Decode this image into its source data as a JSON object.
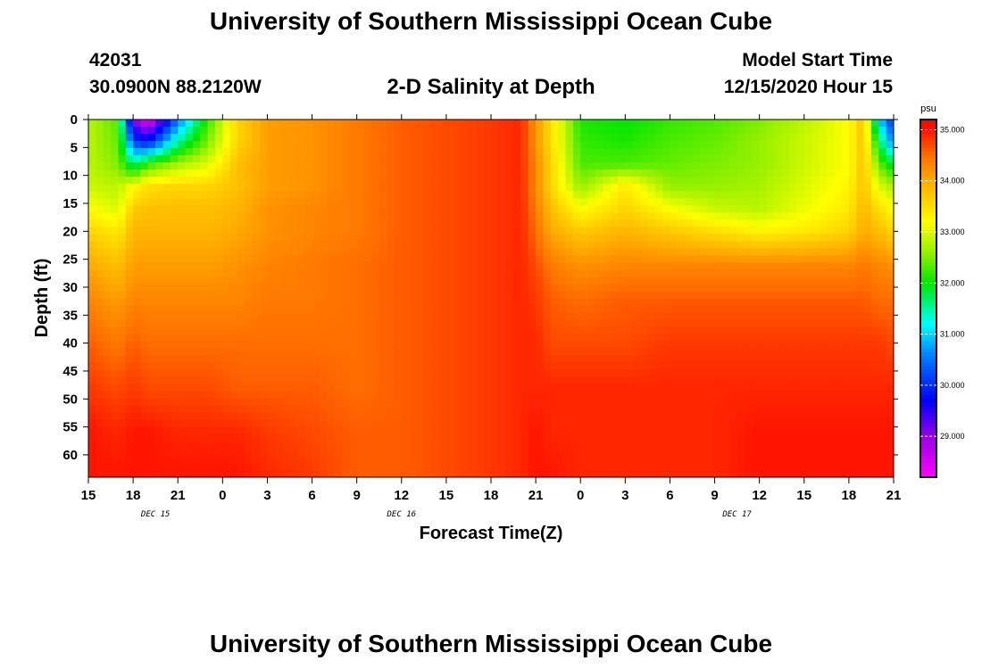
{
  "page": {
    "title": "University of Southern Mississippi Ocean Cube",
    "footer_title": "University of Southern Mississippi Ocean Cube",
    "station_id": "42031",
    "station_coords": "30.0900N 88.2120W",
    "model_start_label": "Model Start Time",
    "model_start_value": "12/15/2020 Hour 15"
  },
  "chart_data": {
    "type": "heatmap",
    "title": "2-D Salinity at Depth",
    "xlabel": "Forecast Time(Z)",
    "ylabel": "Depth (ft)",
    "x_ticks": [
      "15",
      "18",
      "21",
      "0",
      "3",
      "6",
      "9",
      "12",
      "15",
      "18",
      "21",
      "0",
      "3",
      "6",
      "9",
      "12",
      "15",
      "18",
      "21"
    ],
    "x_range_hours": [
      0,
      54
    ],
    "date_labels": [
      {
        "label": "DEC 15",
        "hour": 4.5
      },
      {
        "label": "DEC 16",
        "hour": 21
      },
      {
        "label": "DEC 17",
        "hour": 43.5
      }
    ],
    "y_ticks": [
      0,
      5,
      10,
      15,
      20,
      25,
      30,
      35,
      40,
      45,
      50,
      55,
      60
    ],
    "y_range": [
      0,
      64
    ],
    "colorbar": {
      "unit": "psu",
      "range": [
        28.2,
        35.2
      ],
      "ticks": [
        "35.000",
        "34.000",
        "33.000",
        "32.000",
        "31.000",
        "30.000",
        "29.000"
      ]
    },
    "grid_depths": [
      0,
      4,
      8,
      12,
      16,
      20,
      26,
      32,
      40,
      48,
      56,
      64
    ],
    "grid_hours": [
      0,
      2,
      3,
      4,
      6,
      8,
      10,
      12,
      15,
      18,
      21,
      24,
      27,
      29,
      30,
      31,
      33,
      36,
      39,
      42,
      45,
      48,
      51,
      52,
      53,
      54
    ],
    "salinity": [
      [
        32.8,
        32.3,
        29.0,
        28.3,
        30.5,
        32.2,
        33.6,
        34.1,
        34.2,
        34.4,
        34.6,
        34.7,
        34.8,
        34.9,
        34.2,
        33.5,
        32.1,
        32.0,
        32.2,
        32.3,
        32.5,
        32.8,
        33.2,
        33.8,
        31.0,
        30.0
      ],
      [
        32.8,
        32.4,
        30.2,
        29.8,
        31.5,
        32.5,
        33.6,
        34.1,
        34.2,
        34.4,
        34.6,
        34.7,
        34.8,
        34.9,
        34.2,
        33.5,
        32.2,
        32.1,
        32.3,
        32.4,
        32.6,
        32.9,
        33.2,
        33.8,
        31.8,
        30.5
      ],
      [
        32.8,
        32.5,
        31.6,
        32.2,
        32.7,
        33.0,
        33.8,
        34.1,
        34.2,
        34.4,
        34.6,
        34.7,
        34.8,
        34.9,
        34.3,
        33.6,
        32.3,
        32.3,
        32.4,
        32.5,
        32.6,
        32.9,
        33.2,
        33.8,
        32.4,
        31.8
      ],
      [
        32.9,
        32.8,
        33.2,
        33.5,
        33.6,
        33.6,
        33.8,
        34.1,
        34.2,
        34.4,
        34.6,
        34.7,
        34.8,
        34.9,
        34.3,
        33.6,
        32.6,
        33.4,
        32.6,
        32.6,
        32.7,
        33.0,
        33.3,
        33.8,
        33.0,
        32.7
      ],
      [
        33.2,
        33.0,
        33.7,
        33.8,
        33.8,
        33.8,
        33.9,
        34.2,
        34.3,
        34.4,
        34.6,
        34.7,
        34.8,
        34.9,
        34.4,
        33.8,
        33.2,
        33.6,
        33.2,
        32.9,
        32.8,
        33.1,
        33.4,
        33.9,
        33.5,
        33.2
      ],
      [
        33.6,
        33.4,
        33.9,
        33.9,
        33.9,
        33.9,
        34.0,
        34.2,
        34.3,
        34.4,
        34.6,
        34.7,
        34.8,
        34.9,
        34.5,
        34.0,
        33.7,
        33.9,
        33.7,
        33.5,
        33.3,
        33.4,
        33.6,
        34.0,
        33.8,
        33.6
      ],
      [
        34.0,
        33.8,
        34.1,
        34.1,
        34.1,
        34.1,
        34.2,
        34.3,
        34.4,
        34.5,
        34.6,
        34.7,
        34.8,
        34.9,
        34.7,
        34.4,
        34.2,
        34.3,
        34.3,
        34.3,
        34.3,
        34.3,
        34.3,
        34.4,
        34.3,
        34.2
      ],
      [
        34.3,
        34.1,
        34.3,
        34.3,
        34.3,
        34.3,
        34.3,
        34.4,
        34.4,
        34.5,
        34.6,
        34.7,
        34.8,
        34.9,
        34.8,
        34.6,
        34.5,
        34.6,
        34.6,
        34.6,
        34.6,
        34.6,
        34.6,
        34.6,
        34.5,
        34.5
      ],
      [
        34.6,
        34.4,
        34.6,
        34.5,
        34.5,
        34.5,
        34.5,
        34.5,
        34.5,
        34.5,
        34.6,
        34.7,
        34.8,
        34.9,
        34.9,
        34.7,
        34.7,
        34.7,
        34.8,
        34.8,
        34.8,
        34.8,
        34.8,
        34.8,
        34.8,
        34.7
      ],
      [
        34.8,
        34.7,
        34.8,
        34.7,
        34.7,
        34.7,
        34.6,
        34.6,
        34.6,
        34.5,
        34.6,
        34.7,
        34.8,
        34.9,
        34.9,
        34.9,
        34.9,
        34.9,
        34.9,
        34.9,
        34.9,
        34.9,
        34.9,
        34.9,
        34.9,
        34.9
      ],
      [
        35.0,
        34.9,
        35.0,
        35.0,
        34.9,
        34.9,
        34.9,
        34.8,
        34.7,
        34.6,
        34.6,
        34.7,
        34.8,
        34.9,
        35.0,
        34.9,
        34.9,
        34.9,
        34.9,
        34.9,
        35.0,
        35.0,
        35.0,
        35.0,
        35.0,
        35.0
      ],
      [
        35.0,
        35.0,
        35.0,
        35.0,
        35.0,
        35.0,
        35.0,
        34.9,
        34.8,
        34.6,
        34.6,
        34.7,
        34.8,
        34.9,
        35.0,
        35.0,
        34.9,
        34.9,
        34.9,
        34.9,
        35.0,
        35.0,
        35.0,
        35.0,
        35.0,
        35.0
      ]
    ]
  }
}
